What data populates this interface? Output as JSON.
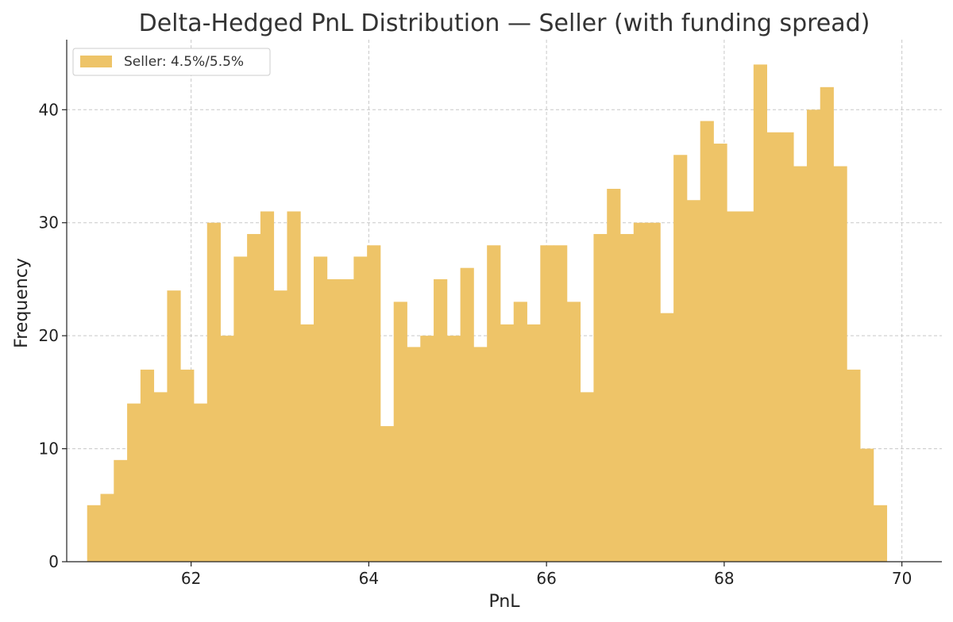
{
  "chart_data": {
    "type": "bar",
    "title": "Delta-Hedged PnL Distribution — Seller (with funding spread)",
    "xlabel": "PnL",
    "ylabel": "Frequency",
    "xlim": [
      60.6,
      70.45
    ],
    "ylim": [
      0,
      46.2
    ],
    "xticks": [
      62,
      64,
      66,
      68,
      70
    ],
    "yticks": [
      0,
      10,
      20,
      30,
      40
    ],
    "grid": true,
    "legend_position": "top-left",
    "bar_color": "#eec468",
    "series": [
      {
        "name": "Seller: 4.5%/5.5%",
        "bin_start": 60.83,
        "bin_width": 0.15,
        "values": [
          5,
          6,
          9,
          14,
          17,
          15,
          24,
          17,
          14,
          30,
          20,
          27,
          29,
          31,
          24,
          31,
          21,
          27,
          25,
          25,
          27,
          28,
          12,
          23,
          19,
          20,
          25,
          20,
          26,
          19,
          28,
          21,
          23,
          21,
          28,
          28,
          23,
          15,
          29,
          33,
          29,
          30,
          30,
          22,
          36,
          32,
          39,
          37,
          31,
          31,
          44,
          38,
          38,
          35,
          40,
          42,
          35,
          17,
          10,
          5
        ]
      }
    ]
  }
}
